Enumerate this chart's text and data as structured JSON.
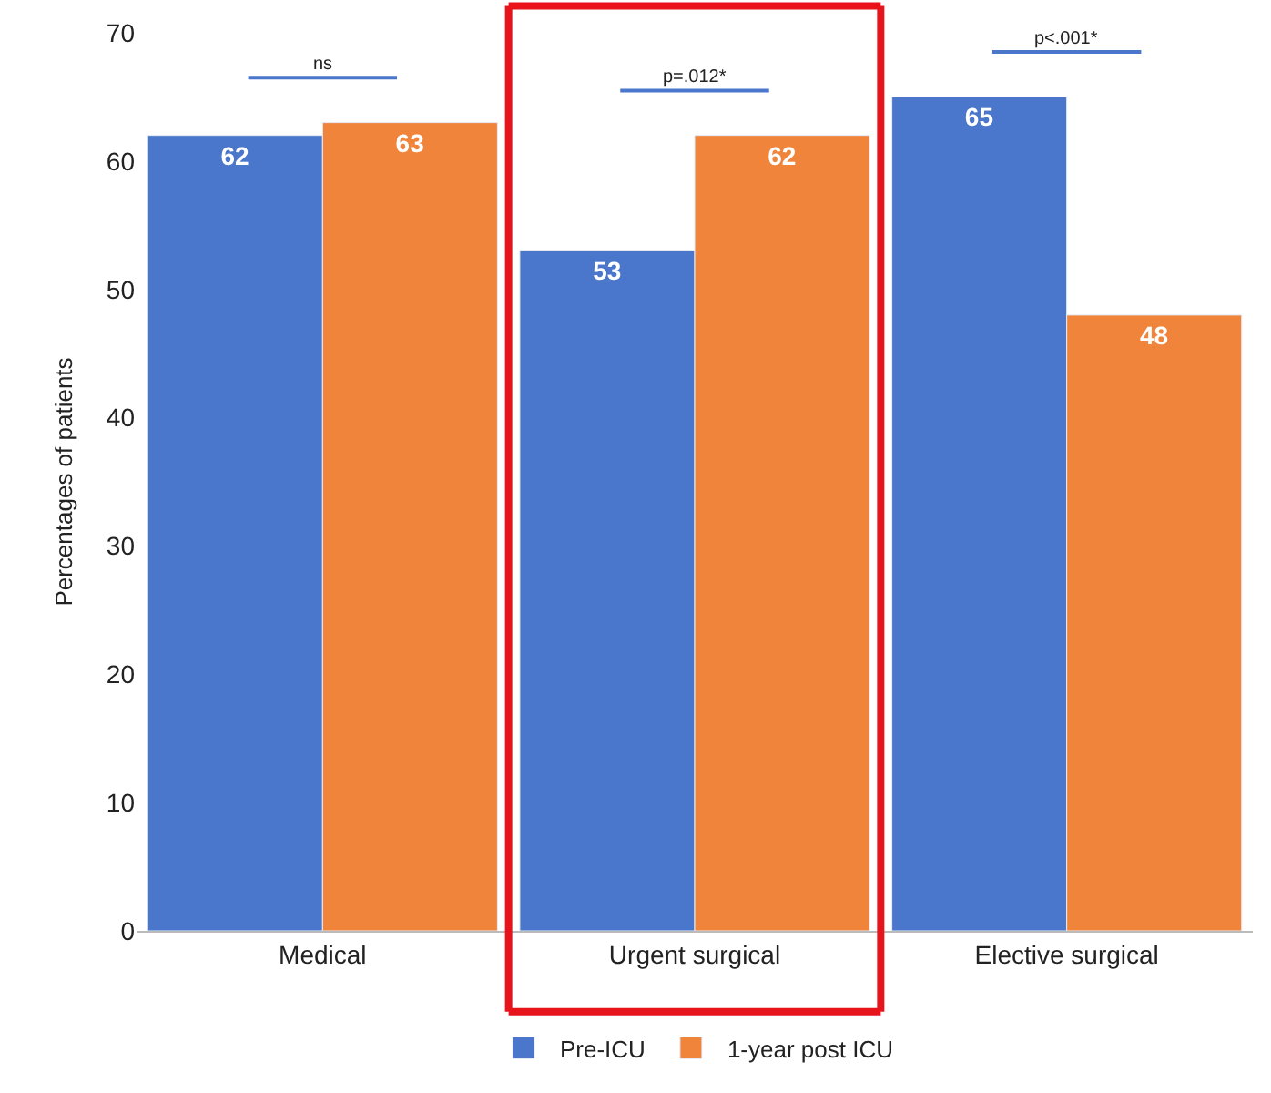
{
  "chart_data": {
    "type": "bar",
    "ylabel": "Percentages of patients",
    "categories": [
      "Medical",
      "Urgent surgical",
      "Elective surgical"
    ],
    "series": [
      {
        "name": "Pre-ICU",
        "color": "#4a76cb",
        "values": [
          62,
          53,
          65
        ]
      },
      {
        "name": "1-year post ICU",
        "color": "#f0843a",
        "values": [
          63,
          62,
          48
        ]
      }
    ],
    "ylim": [
      0,
      70
    ],
    "yticks": [
      0,
      10,
      20,
      30,
      40,
      50,
      60,
      70
    ],
    "data_labels": true,
    "legend": "bottom",
    "annotations": [
      "ns",
      "p=.012*",
      "p<.001*"
    ]
  }
}
